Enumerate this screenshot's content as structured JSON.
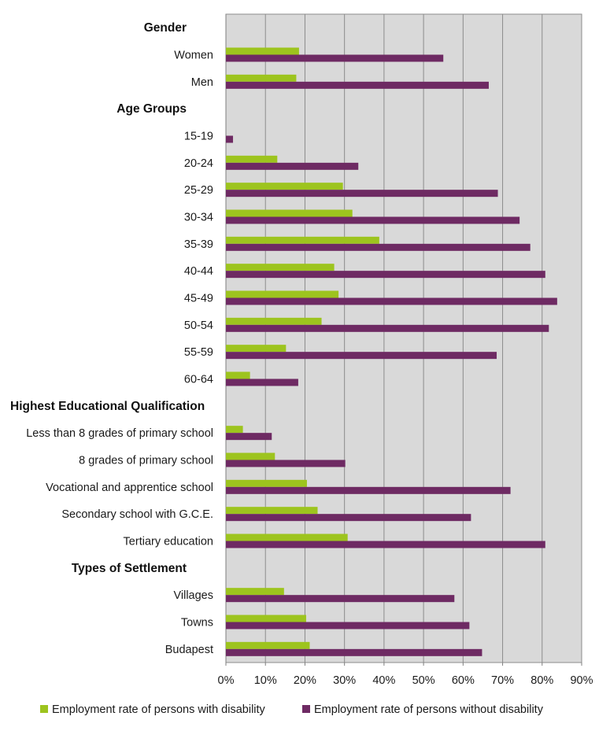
{
  "chart_data": {
    "type": "bar",
    "orientation": "horizontal",
    "title": "",
    "xlabel": "",
    "ylabel": "",
    "xlim": [
      0,
      90
    ],
    "ticks": [
      "0%",
      "10%",
      "20%",
      "30%",
      "40%",
      "50%",
      "60%",
      "70%",
      "80%",
      "90%"
    ],
    "tick_values": [
      0,
      10,
      20,
      30,
      40,
      50,
      60,
      70,
      80,
      90
    ],
    "grid": true,
    "legend_position": "bottom",
    "colors": {
      "with_disability": "#9dc41e",
      "without_disability": "#6e2a63",
      "plot_background": "#d9d9d9",
      "gridline": "#8c8c8c"
    },
    "series": [
      {
        "name": "Employment rate of persons with disability",
        "color": "#9dc41e"
      },
      {
        "name": "Employment rate of persons without disability",
        "color": "#6e2a63"
      }
    ],
    "rows": [
      {
        "kind": "group",
        "label": "Gender"
      },
      {
        "kind": "bar",
        "label": "Women",
        "values": [
          18.5,
          55.0
        ]
      },
      {
        "kind": "bar",
        "label": "Men",
        "values": [
          17.8,
          66.5
        ]
      },
      {
        "kind": "group",
        "label": "Age Groups"
      },
      {
        "kind": "bar",
        "label": "15-19",
        "values": [
          0,
          1.8
        ]
      },
      {
        "kind": "bar",
        "label": "20-24",
        "values": [
          13.0,
          33.5
        ]
      },
      {
        "kind": "bar",
        "label": "25-29",
        "values": [
          29.6,
          68.8
        ]
      },
      {
        "kind": "bar",
        "label": "30-34",
        "values": [
          32.0,
          74.3
        ]
      },
      {
        "kind": "bar",
        "label": "35-39",
        "values": [
          38.8,
          77.0
        ]
      },
      {
        "kind": "bar",
        "label": "40-44",
        "values": [
          27.4,
          80.8
        ]
      },
      {
        "kind": "bar",
        "label": "45-49",
        "values": [
          28.5,
          83.8
        ]
      },
      {
        "kind": "bar",
        "label": "50-54",
        "values": [
          24.2,
          81.7
        ]
      },
      {
        "kind": "bar",
        "label": "55-59",
        "values": [
          15.2,
          68.5
        ]
      },
      {
        "kind": "bar",
        "label": "60-64",
        "values": [
          6.1,
          18.3
        ]
      },
      {
        "kind": "group",
        "label": "Highest Educational Qualification"
      },
      {
        "kind": "bar",
        "label": "Less than 8 grades of primary school",
        "values": [
          4.3,
          11.6
        ]
      },
      {
        "kind": "bar",
        "label": "8 grades of primary school",
        "values": [
          12.4,
          30.2
        ]
      },
      {
        "kind": "bar",
        "label": "Vocational and apprentice school",
        "values": [
          20.5,
          72.0
        ]
      },
      {
        "kind": "bar",
        "label": "Secondary school with G.C.E.",
        "values": [
          23.2,
          62.0
        ]
      },
      {
        "kind": "bar",
        "label": "Tertiary education",
        "values": [
          30.8,
          80.8
        ]
      },
      {
        "kind": "group",
        "label": "Types of Settlement"
      },
      {
        "kind": "bar",
        "label": "Villages",
        "values": [
          14.7,
          57.8
        ]
      },
      {
        "kind": "bar",
        "label": "Towns",
        "values": [
          20.3,
          61.6
        ]
      },
      {
        "kind": "bar",
        "label": "Budapest",
        "values": [
          21.2,
          64.8
        ]
      }
    ]
  }
}
